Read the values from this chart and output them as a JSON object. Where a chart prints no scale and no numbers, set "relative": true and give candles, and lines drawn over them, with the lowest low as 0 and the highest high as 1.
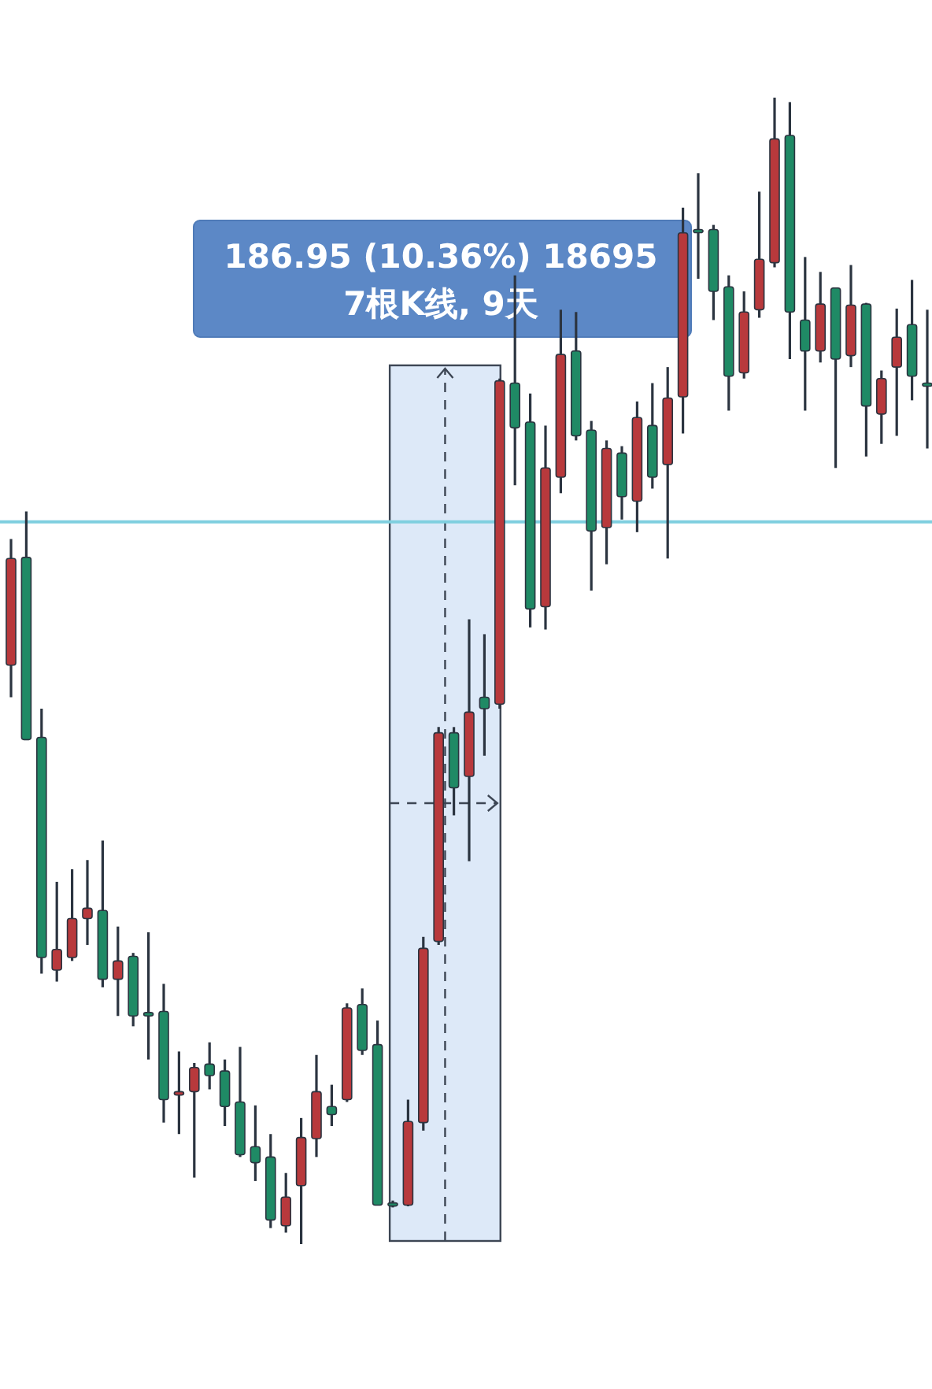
{
  "chart_data": {
    "type": "candlestick",
    "relative": true,
    "categories": [
      null,
      null,
      null,
      null,
      null,
      null,
      null,
      null,
      null,
      null,
      null,
      null,
      null,
      null,
      null,
      null,
      null,
      null,
      null,
      null,
      null,
      null,
      null,
      null,
      null,
      null,
      null,
      null,
      null,
      null,
      null,
      null,
      null,
      null,
      null,
      null,
      null,
      null,
      null,
      null,
      null,
      null,
      null,
      null,
      null,
      null,
      null,
      null,
      null,
      null,
      null,
      null,
      null,
      null,
      null,
      null,
      null,
      null,
      null,
      null,
      null
    ],
    "ohlc": [
      [
        0.505,
        0.615,
        0.477,
        0.598
      ],
      [
        0.599,
        0.639,
        0.44,
        0.44
      ],
      [
        0.442,
        0.467,
        0.236,
        0.25
      ],
      [
        0.239,
        0.316,
        0.229,
        0.257
      ],
      [
        0.25,
        0.327,
        0.247,
        0.284
      ],
      [
        0.284,
        0.335,
        0.261,
        0.293
      ],
      [
        0.291,
        0.352,
        0.224,
        0.231
      ],
      [
        0.231,
        0.277,
        0.199,
        0.247
      ],
      [
        0.251,
        0.254,
        0.19,
        0.199
      ],
      [
        0.202,
        0.272,
        0.161,
        0.199
      ],
      [
        0.203,
        0.227,
        0.106,
        0.126
      ],
      [
        0.13,
        0.168,
        0.096,
        0.133
      ],
      [
        0.133,
        0.158,
        0.058,
        0.154
      ],
      [
        0.157,
        0.176,
        0.135,
        0.147
      ],
      [
        0.151,
        0.161,
        0.103,
        0.12
      ],
      [
        0.124,
        0.172,
        0.076,
        0.078
      ],
      [
        0.085,
        0.121,
        0.055,
        0.071
      ],
      [
        0.076,
        0.096,
        0.014,
        0.021
      ],
      [
        0.016,
        0.062,
        0.01,
        0.041
      ],
      [
        0.051,
        0.11,
        0,
        0.093
      ],
      [
        0.092,
        0.165,
        0.076,
        0.133
      ],
      [
        0.12,
        0.139,
        0.103,
        0.113
      ],
      [
        0.126,
        0.21,
        0.124,
        0.206
      ],
      [
        0.209,
        0.223,
        0.165,
        0.169
      ],
      [
        0.174,
        0.195,
        0.034,
        0.034
      ],
      [
        0.036,
        0.038,
        0.032,
        0.034
      ],
      [
        0.034,
        0.126,
        0.033,
        0.107
      ],
      [
        0.106,
        0.268,
        0.099,
        0.258
      ],
      [
        0.264,
        0.451,
        0.261,
        0.446
      ],
      [
        0.446,
        0.451,
        0.374,
        0.398
      ],
      [
        0.408,
        0.545,
        0.334,
        0.464
      ],
      [
        0.477,
        0.532,
        0.426,
        0.467
      ],
      [
        0.471,
        0.755,
        0.467,
        0.753
      ],
      [
        0.751,
        0.845,
        0.662,
        0.712
      ],
      [
        0.717,
        0.742,
        0.538,
        0.554
      ],
      [
        0.556,
        0.714,
        0.536,
        0.677
      ],
      [
        0.669,
        0.815,
        0.655,
        0.776
      ],
      [
        0.779,
        0.813,
        0.701,
        0.705
      ],
      [
        0.71,
        0.718,
        0.57,
        0.622
      ],
      [
        0.625,
        0.701,
        0.593,
        0.694
      ],
      [
        0.69,
        0.696,
        0.632,
        0.652
      ],
      [
        0.648,
        0.735,
        0.621,
        0.721
      ],
      [
        0.714,
        0.751,
        0.659,
        0.669
      ],
      [
        0.68,
        0.765,
        0.598,
        0.738
      ],
      [
        0.739,
        0.904,
        0.707,
        0.882
      ],
      [
        0.885,
        0.934,
        0.842,
        0.883
      ],
      [
        0.885,
        0.889,
        0.806,
        0.831
      ],
      [
        0.835,
        0.845,
        0.727,
        0.757
      ],
      [
        0.76,
        0.831,
        0.755,
        0.813
      ],
      [
        0.815,
        0.918,
        0.808,
        0.859
      ],
      [
        0.856,
        1,
        0.852,
        0.964
      ],
      [
        0.967,
        0.996,
        0.772,
        0.813
      ],
      [
        0.806,
        0.861,
        0.727,
        0.779
      ],
      [
        0.779,
        0.848,
        0.769,
        0.82
      ],
      [
        0.834,
        0.834,
        0.677,
        0.772
      ],
      [
        0.775,
        0.854,
        0.765,
        0.819
      ],
      [
        0.82,
        0.821,
        0.687,
        0.731
      ],
      [
        0.724,
        0.762,
        0.698,
        0.755
      ],
      [
        0.765,
        0.816,
        0.705,
        0.791
      ],
      [
        0.802,
        0.841,
        0.736,
        0.757
      ],
      [
        0.751,
        0.815,
        0.694,
        0.749
      ]
    ],
    "colors": [
      "#b8393c",
      "#1f8a65",
      "#1f8a65",
      "#b8393c",
      "#b8393c",
      "#b8393c",
      "#1f8a65",
      "#b8393c",
      "#1f8a65",
      "#1f8a65",
      "#1f8a65",
      "#b8393c",
      "#b8393c",
      "#1f8a65",
      "#1f8a65",
      "#1f8a65",
      "#1f8a65",
      "#1f8a65",
      "#b8393c",
      "#b8393c",
      "#b8393c",
      "#1f8a65",
      "#b8393c",
      "#1f8a65",
      "#1f8a65",
      "#1f8a65",
      "#b8393c",
      "#b8393c",
      "#b8393c",
      "#1f8a65",
      "#b8393c",
      "#1f8a65",
      "#b8393c",
      "#1f8a65",
      "#1f8a65",
      "#b8393c",
      "#b8393c",
      "#1f8a65",
      "#1f8a65",
      "#b8393c",
      "#1f8a65",
      "#b8393c",
      "#1f8a65",
      "#b8393c",
      "#b8393c",
      "#1f8a65",
      "#1f8a65",
      "#1f8a65",
      "#b8393c",
      "#b8393c",
      "#b8393c",
      "#1f8a65",
      "#1f8a65",
      "#b8393c",
      "#1f8a65",
      "#b8393c",
      "#1f8a65",
      "#b8393c",
      "#b8393c",
      "#1f8a65",
      "#1f8a65"
    ],
    "ref_lines": [
      {
        "axis": "y",
        "value": 0.63,
        "color": "#7fcfdf"
      }
    ],
    "annotations": [
      "186.95 (10.36%) 18695",
      "7根K线, 9天"
    ]
  }
}
